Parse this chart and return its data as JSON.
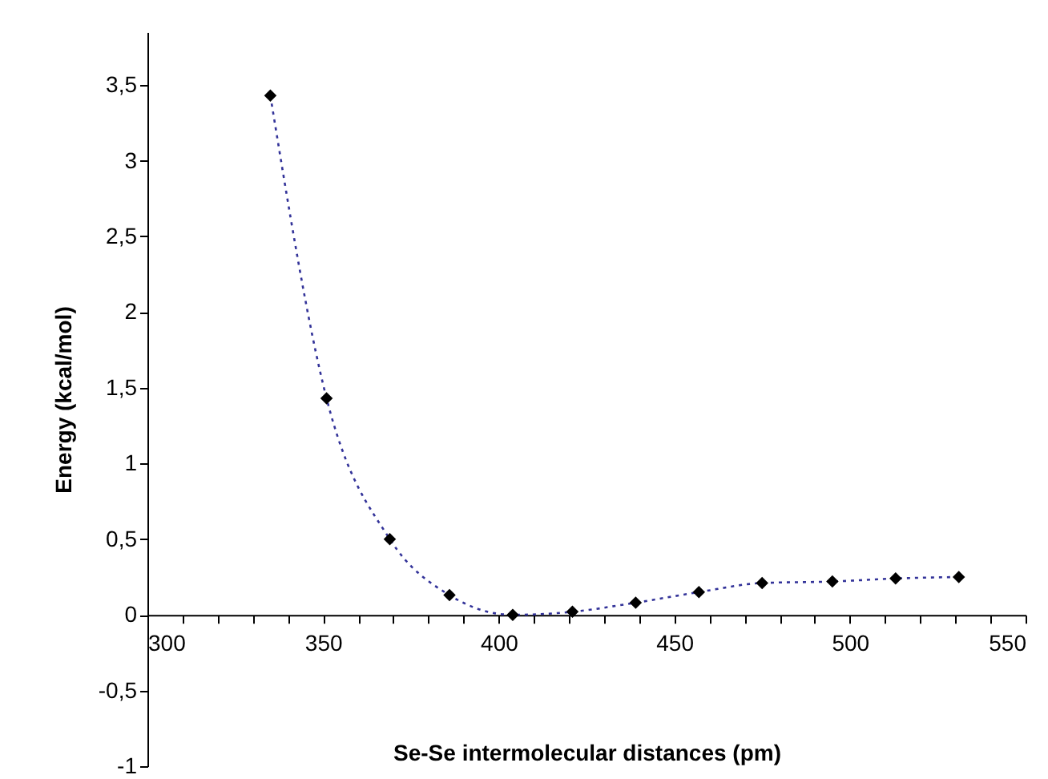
{
  "chart_data": {
    "type": "scatter",
    "xlabel": "Se-Se intermolecular distances (pm)",
    "ylabel": "Energy (kcal/mol)",
    "xlim": [
      300,
      550
    ],
    "ylim": [
      -1,
      3.85
    ],
    "xticks": [
      300,
      {
        "value": 310,
        "label": null
      },
      {
        "value": 320,
        "label": null
      },
      {
        "value": 330,
        "label": null
      },
      {
        "value": 340,
        "label": null
      },
      350,
      {
        "value": 360,
        "label": null
      },
      {
        "value": 370,
        "label": null
      },
      {
        "value": 380,
        "label": null
      },
      {
        "value": 390,
        "label": null
      },
      400,
      {
        "value": 410,
        "label": null
      },
      {
        "value": 420,
        "label": null
      },
      {
        "value": 430,
        "label": null
      },
      {
        "value": 440,
        "label": null
      },
      450,
      {
        "value": 460,
        "label": null
      },
      {
        "value": 470,
        "label": null
      },
      {
        "value": 480,
        "label": null
      },
      {
        "value": 490,
        "label": null
      },
      500,
      {
        "value": 510,
        "label": null
      },
      {
        "value": 520,
        "label": null
      },
      {
        "value": 530,
        "label": null
      },
      {
        "value": 540,
        "label": null
      },
      550
    ],
    "yticks": [
      {
        "value": -1,
        "label": "-1"
      },
      {
        "value": -0.5,
        "label": "-0,5"
      },
      0,
      {
        "value": 0.5,
        "label": "0,5"
      },
      1,
      {
        "value": 1.5,
        "label": "1,5"
      },
      2,
      {
        "value": 2.5,
        "label": "2,5"
      },
      3,
      {
        "value": 3.5,
        "label": "3,5"
      }
    ],
    "grid": false,
    "series": [
      {
        "type": "line",
        "line_style": "dotted",
        "marker": "none",
        "color": "#333399",
        "x": [
          335,
          351,
          369,
          386,
          404,
          421,
          439,
          457,
          475,
          495,
          513,
          531
        ],
        "values": [
          3.43,
          1.43,
          0.5,
          0.13,
          0,
          0.02,
          0.08,
          0.15,
          0.21,
          0.22,
          0.24,
          0.25
        ]
      },
      {
        "marker": "diamond",
        "color": "#000000",
        "x": [
          335,
          351,
          369,
          386,
          404,
          421,
          439,
          457,
          475,
          495,
          513,
          531
        ],
        "values": [
          3.43,
          1.43,
          0.5,
          0.13,
          0,
          0.02,
          0.08,
          0.15,
          0.21,
          0.22,
          0.24,
          0.25
        ]
      }
    ]
  }
}
